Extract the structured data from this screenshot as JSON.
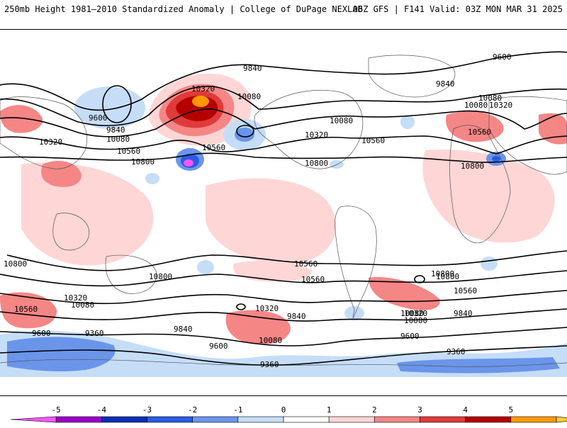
{
  "header": {
    "title_left": "250mb Height 1981–2010 Standardized Anomaly | College of DuPage NEXLAB",
    "title_right": "06Z GFS | F141 Valid: 03Z MON MAR 31 2025"
  },
  "colorbar": {
    "ticks": [
      "-5",
      "-4",
      "-3",
      "-2",
      "-1",
      "0",
      "1",
      "2",
      "3",
      "4",
      "5"
    ],
    "colors": [
      "#ff55ff",
      "#9a00c8",
      "#0a2fb5",
      "#2b5ce0",
      "#6a95ea",
      "#c6ddf8",
      "#ffffff",
      "#ffd6d6",
      "#f58686",
      "#e03a3a",
      "#b50000",
      "#ff9900",
      "#ffcc33"
    ]
  },
  "map": {
    "contour_labels": [
      "9840",
      "9600",
      "10320",
      "10080",
      "9600",
      "9840",
      "10320",
      "10080",
      "10560",
      "10800",
      "10560",
      "10080",
      "10320",
      "10080",
      "10560",
      "10800",
      "9840",
      "10320",
      "10080",
      "10560",
      "10800",
      "10800",
      "10800",
      "10560",
      "10800",
      "10560",
      "10800",
      "10560",
      "10320",
      "10080",
      "10560",
      "10320",
      "9840",
      "10080",
      "9600",
      "9360",
      "9840",
      "9600",
      "10080",
      "9360",
      "9600",
      "9360",
      "10320",
      "10080",
      "9840"
    ]
  }
}
